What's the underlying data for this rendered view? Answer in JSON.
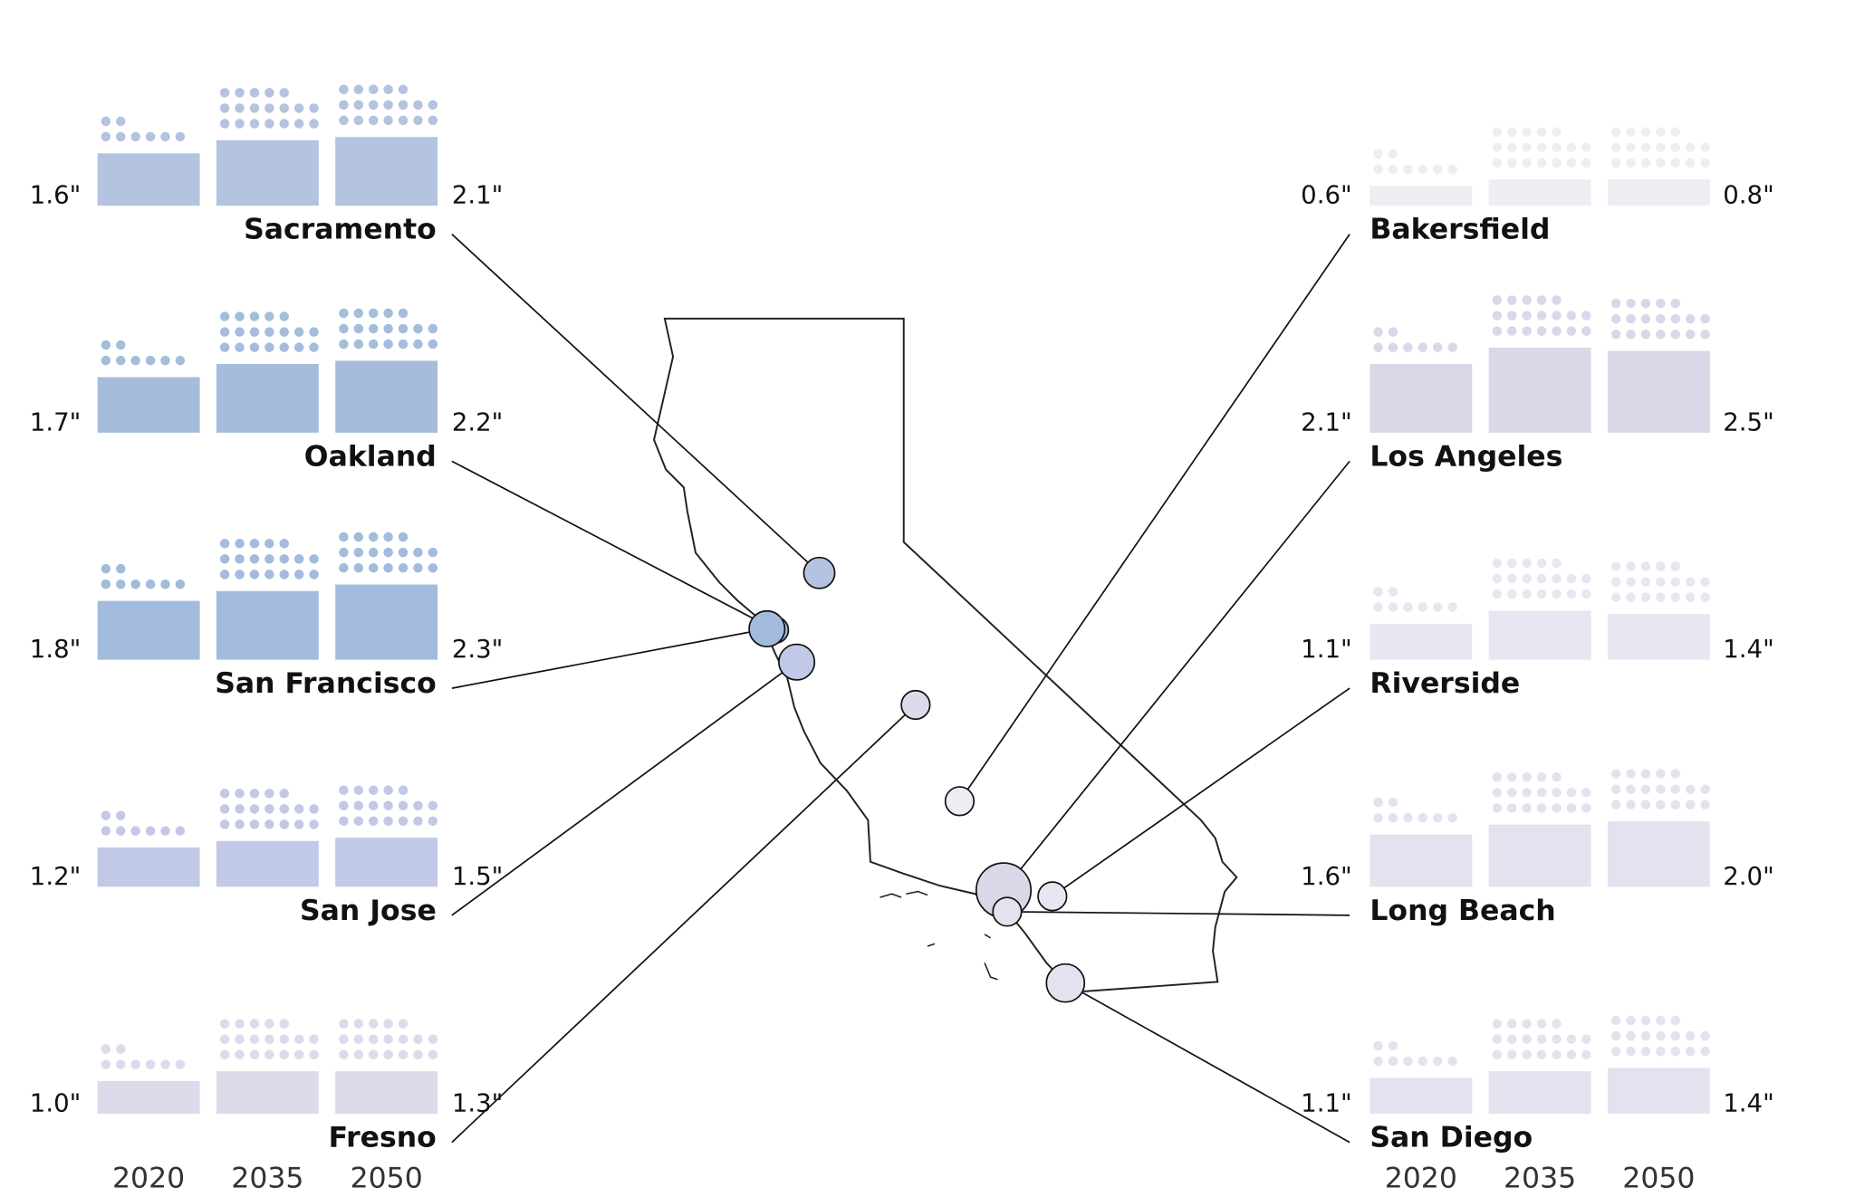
{
  "chart_data": {
    "type": "bar-map",
    "categories": [
      "2020",
      "2035",
      "2050"
    ],
    "cities": [
      {
        "name": "Sacramento",
        "color": "#b3c3e0",
        "values": [
          1.6,
          2.0,
          2.1
        ],
        "value_labels": [
          "1.6\"",
          null,
          "2.1\""
        ]
      },
      {
        "name": "Oakland",
        "color": "#a5bcdd",
        "values": [
          1.7,
          2.1,
          2.2
        ],
        "value_labels": [
          "1.7\"",
          null,
          "2.2\""
        ]
      },
      {
        "name": "San Francisco",
        "color": "#a3bbdc",
        "values": [
          1.8,
          2.1,
          2.3
        ],
        "value_labels": [
          "1.8\"",
          null,
          "2.3\""
        ]
      },
      {
        "name": "San Jose",
        "color": "#c1c9e6",
        "values": [
          1.2,
          1.4,
          1.5
        ],
        "value_labels": [
          "1.2\"",
          null,
          "1.5\""
        ]
      },
      {
        "name": "Fresno",
        "color": "#dbdbeb",
        "values": [
          1.0,
          1.3,
          1.3
        ],
        "value_labels": [
          "1.0\"",
          null,
          "1.3\""
        ]
      },
      {
        "name": "Bakersfield",
        "color": "#f0ecf4",
        "values": [
          0.6,
          0.8,
          0.8
        ],
        "value_labels": [
          "0.6\"",
          null,
          "0.8\""
        ]
      },
      {
        "name": "Los Angeles",
        "color": "#d8d8e8",
        "values": [
          2.1,
          2.6,
          2.5
        ],
        "value_labels": [
          "2.1\"",
          null,
          "2.5\""
        ]
      },
      {
        "name": "Riverside",
        "color": "#e8e6f0",
        "values": [
          1.1,
          1.5,
          1.4
        ],
        "value_labels": [
          "1.1\"",
          null,
          "1.4\""
        ]
      },
      {
        "name": "Long Beach",
        "color": "#e4e2ee",
        "values": [
          1.6,
          1.9,
          2.0
        ],
        "value_labels": [
          "1.6\"",
          null,
          "2.0\""
        ]
      },
      {
        "name": "San Diego",
        "color": "#e4e2ee",
        "values": [
          1.1,
          1.3,
          1.4
        ],
        "value_labels": [
          "1.1\"",
          null,
          "1.4\""
        ]
      }
    ]
  }
}
